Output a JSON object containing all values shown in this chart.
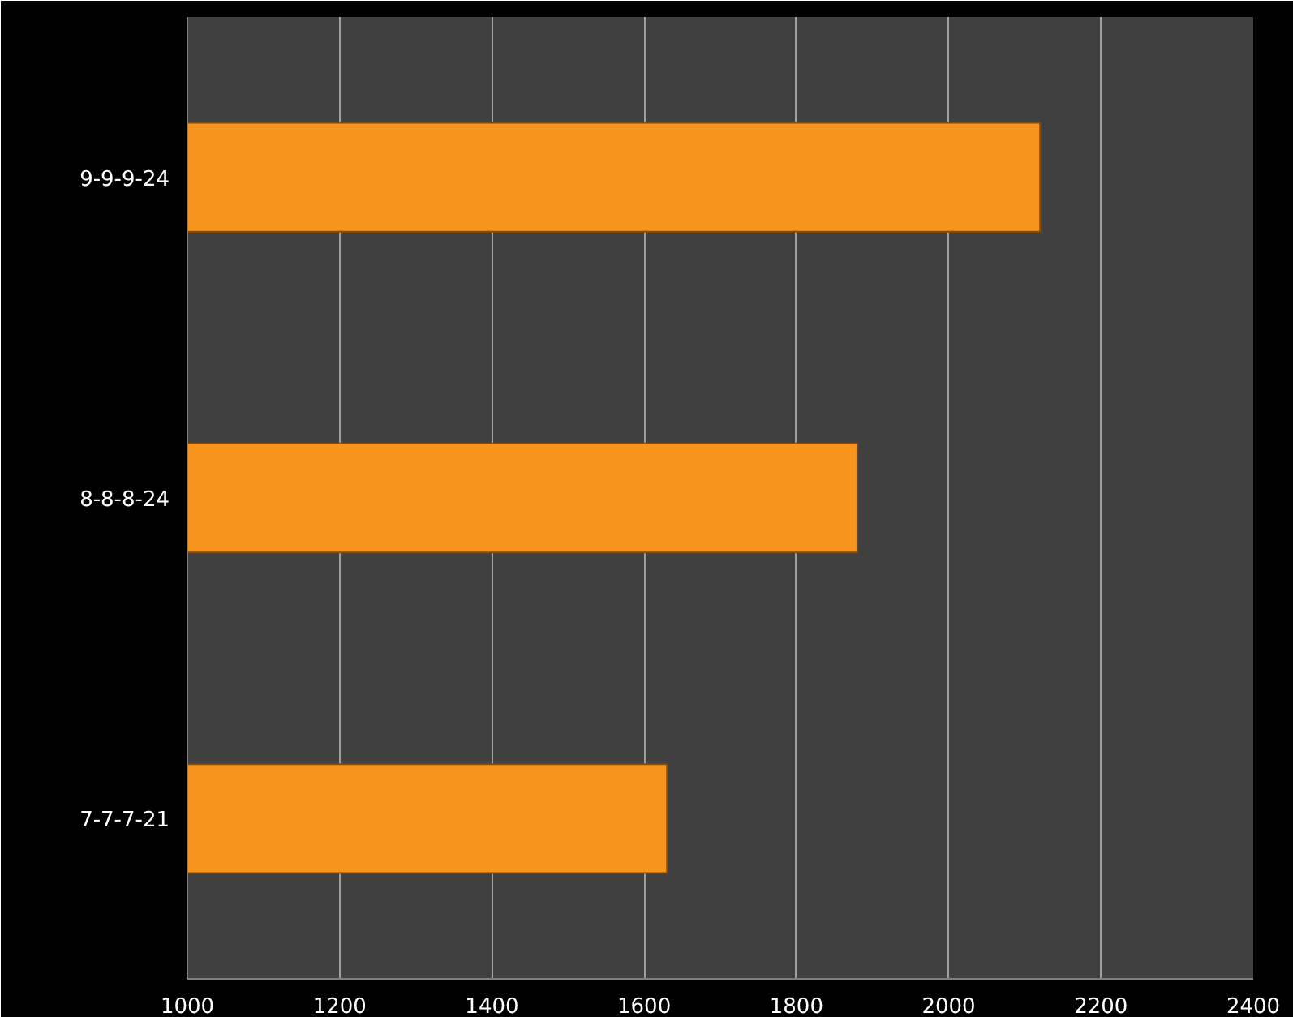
{
  "chart_data": {
    "type": "bar",
    "orientation": "horizontal",
    "categories": [
      "9-9-9-24",
      "8-8-8-24",
      "7-7-7-21"
    ],
    "values": [
      2120,
      1880,
      1630
    ],
    "color": "#f7941d",
    "xlim": [
      1000,
      2400
    ],
    "xticks": [
      1000,
      1200,
      1400,
      1600,
      1800,
      2000,
      2200,
      2400
    ],
    "grid": "x"
  }
}
